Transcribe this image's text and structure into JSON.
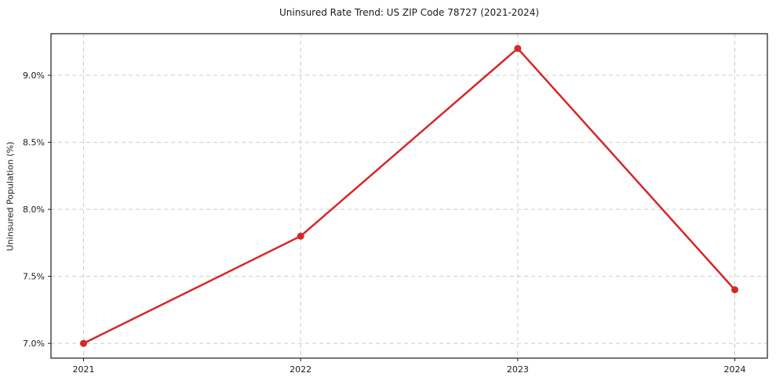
{
  "chart_data": {
    "type": "line",
    "title": "Uninsured Rate Trend: US ZIP Code 78727 (2021-2024)",
    "xlabel": "",
    "ylabel": "Uninsured Population (%)",
    "x": [
      2021,
      2022,
      2023,
      2024
    ],
    "values": [
      7.0,
      7.8,
      9.2,
      7.4
    ],
    "xtick_labels": [
      "2021",
      "2022",
      "2023",
      "2024"
    ],
    "ytick_values": [
      7.0,
      7.5,
      8.0,
      8.5,
      9.0
    ],
    "ytick_labels": [
      "7.0%",
      "7.5%",
      "8.0%",
      "8.5%",
      "9.0%"
    ],
    "xlim": [
      2020.85,
      2024.15
    ],
    "ylim": [
      6.89,
      9.31
    ],
    "grid": "dashed",
    "legend_position": "none",
    "line_color": "#d62728",
    "marker": "circle-icon",
    "grid_color": "#cccccc",
    "axis_color": "#1a1a1a",
    "text_color": "#1a1a1a",
    "background_color": "#ffffff"
  }
}
